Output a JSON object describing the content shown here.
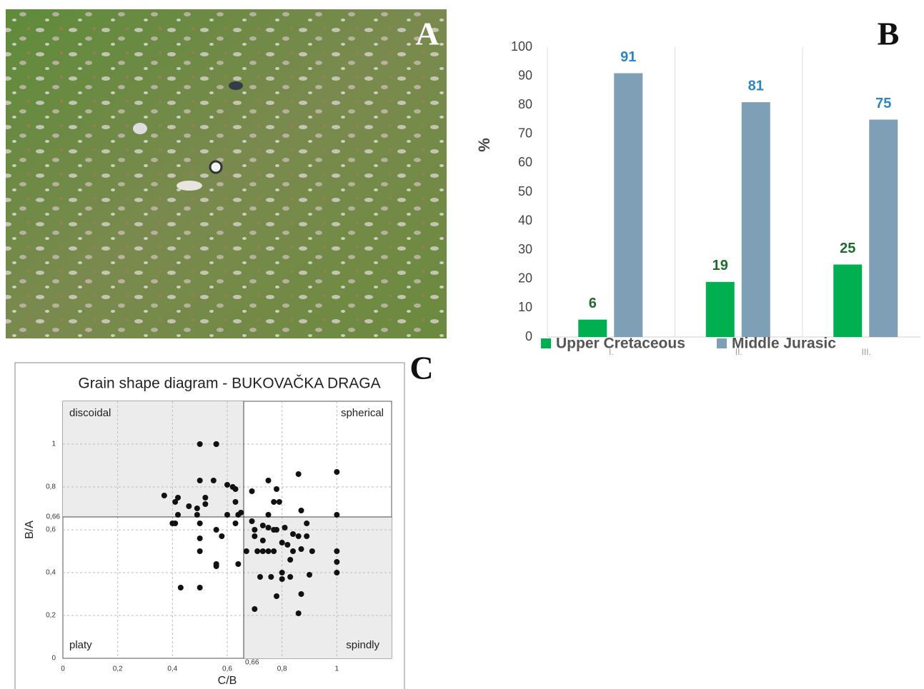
{
  "panel_labels": [
    "A",
    "B",
    "C"
  ],
  "chart_data": [
    {
      "type": "bar",
      "y_label": "%",
      "categories": [
        "I.",
        "II.",
        "III."
      ],
      "series": [
        {
          "name": "Upper Cretaceous",
          "color": "#00b050",
          "label_color": "#1f6b2e",
          "values": [
            6,
            19,
            25
          ]
        },
        {
          "name": "Middle Jurasic",
          "color": "#7f9fb6",
          "label_color": "#2e86c1",
          "values": [
            91,
            81,
            75
          ]
        }
      ],
      "ylim": [
        0,
        100
      ],
      "yticks": [
        0,
        10,
        20,
        30,
        40,
        50,
        60,
        70,
        80,
        90,
        100
      ],
      "category_separators": true,
      "legend": "bottom"
    },
    {
      "type": "scatter",
      "title": "Grain shape diagram - BUKOVAČKA DRAGA",
      "x_label": "C/B",
      "y_label": "B/A",
      "xlim": [
        0,
        1.2
      ],
      "ylim": [
        0,
        1.2
      ],
      "xticks": [
        0,
        {
          "value": 0.2,
          "label": "0,2"
        },
        {
          "value": 0.4,
          "label": "0,4"
        },
        {
          "value": 0.6,
          "label": "0,6"
        },
        {
          "value": 0.8,
          "label": "0,8"
        },
        1
      ],
      "yticks": [
        0,
        {
          "value": 0.2,
          "label": "0,2"
        },
        {
          "value": 0.4,
          "label": "0,4"
        },
        {
          "value": 0.6,
          "label": "0,6"
        },
        {
          "value": 0.8,
          "label": "0,8"
        },
        1
      ],
      "x_split": {
        "value": 0.66,
        "label": "0,66"
      },
      "y_split": {
        "value": 0.66,
        "label": "0,66"
      },
      "quadrants": {
        "top_left": "discoidal",
        "top_right": "spherical",
        "bottom_left": "platy",
        "bottom_right": "spindly"
      },
      "grid": true,
      "series": [
        {
          "color": "#111111",
          "x": [
            0.5,
            0.56,
            0.56,
            0.5,
            0.55,
            0.37,
            0.42,
            0.41,
            0.52,
            0.6,
            0.62,
            0.63,
            0.46,
            0.49,
            0.52,
            0.63,
            0.69,
            0.75,
            0.78,
            0.77,
            0.79,
            0.86,
            1.0,
            0.42,
            0.49,
            0.6,
            0.64,
            0.65,
            0.75,
            0.87,
            1.0,
            0.4,
            0.41,
            0.5,
            0.63,
            0.69,
            0.73,
            0.75,
            0.7,
            0.56,
            0.58,
            0.77,
            0.78,
            0.81,
            0.84,
            0.86,
            0.89,
            0.89,
            0.7,
            0.73,
            0.8,
            0.82,
            0.5,
            0.5,
            0.67,
            0.71,
            0.73,
            0.75,
            0.77,
            0.84,
            0.87,
            0.91,
            1.0,
            0.64,
            0.56,
            0.56,
            0.83,
            1.0,
            0.72,
            0.76,
            0.8,
            0.8,
            0.83,
            0.9,
            1.0,
            0.43,
            0.5,
            0.78,
            0.87,
            0.7,
            0.86
          ],
          "values": [
            1.0,
            1.0,
            1.0,
            0.83,
            0.83,
            0.76,
            0.75,
            0.73,
            0.75,
            0.81,
            0.8,
            0.79,
            0.71,
            0.7,
            0.72,
            0.73,
            0.78,
            0.83,
            0.79,
            0.73,
            0.73,
            0.86,
            0.87,
            0.67,
            0.67,
            0.67,
            0.67,
            0.68,
            0.67,
            0.69,
            0.67,
            0.63,
            0.63,
            0.63,
            0.63,
            0.64,
            0.62,
            0.61,
            0.6,
            0.6,
            0.57,
            0.6,
            0.6,
            0.61,
            0.58,
            0.57,
            0.57,
            0.63,
            0.57,
            0.55,
            0.54,
            0.53,
            0.56,
            0.5,
            0.5,
            0.5,
            0.5,
            0.5,
            0.5,
            0.5,
            0.51,
            0.5,
            0.5,
            0.44,
            0.44,
            0.43,
            0.46,
            0.45,
            0.38,
            0.38,
            0.4,
            0.37,
            0.38,
            0.39,
            0.4,
            0.33,
            0.33,
            0.29,
            0.3,
            0.23,
            0.21
          ]
        }
      ]
    }
  ]
}
